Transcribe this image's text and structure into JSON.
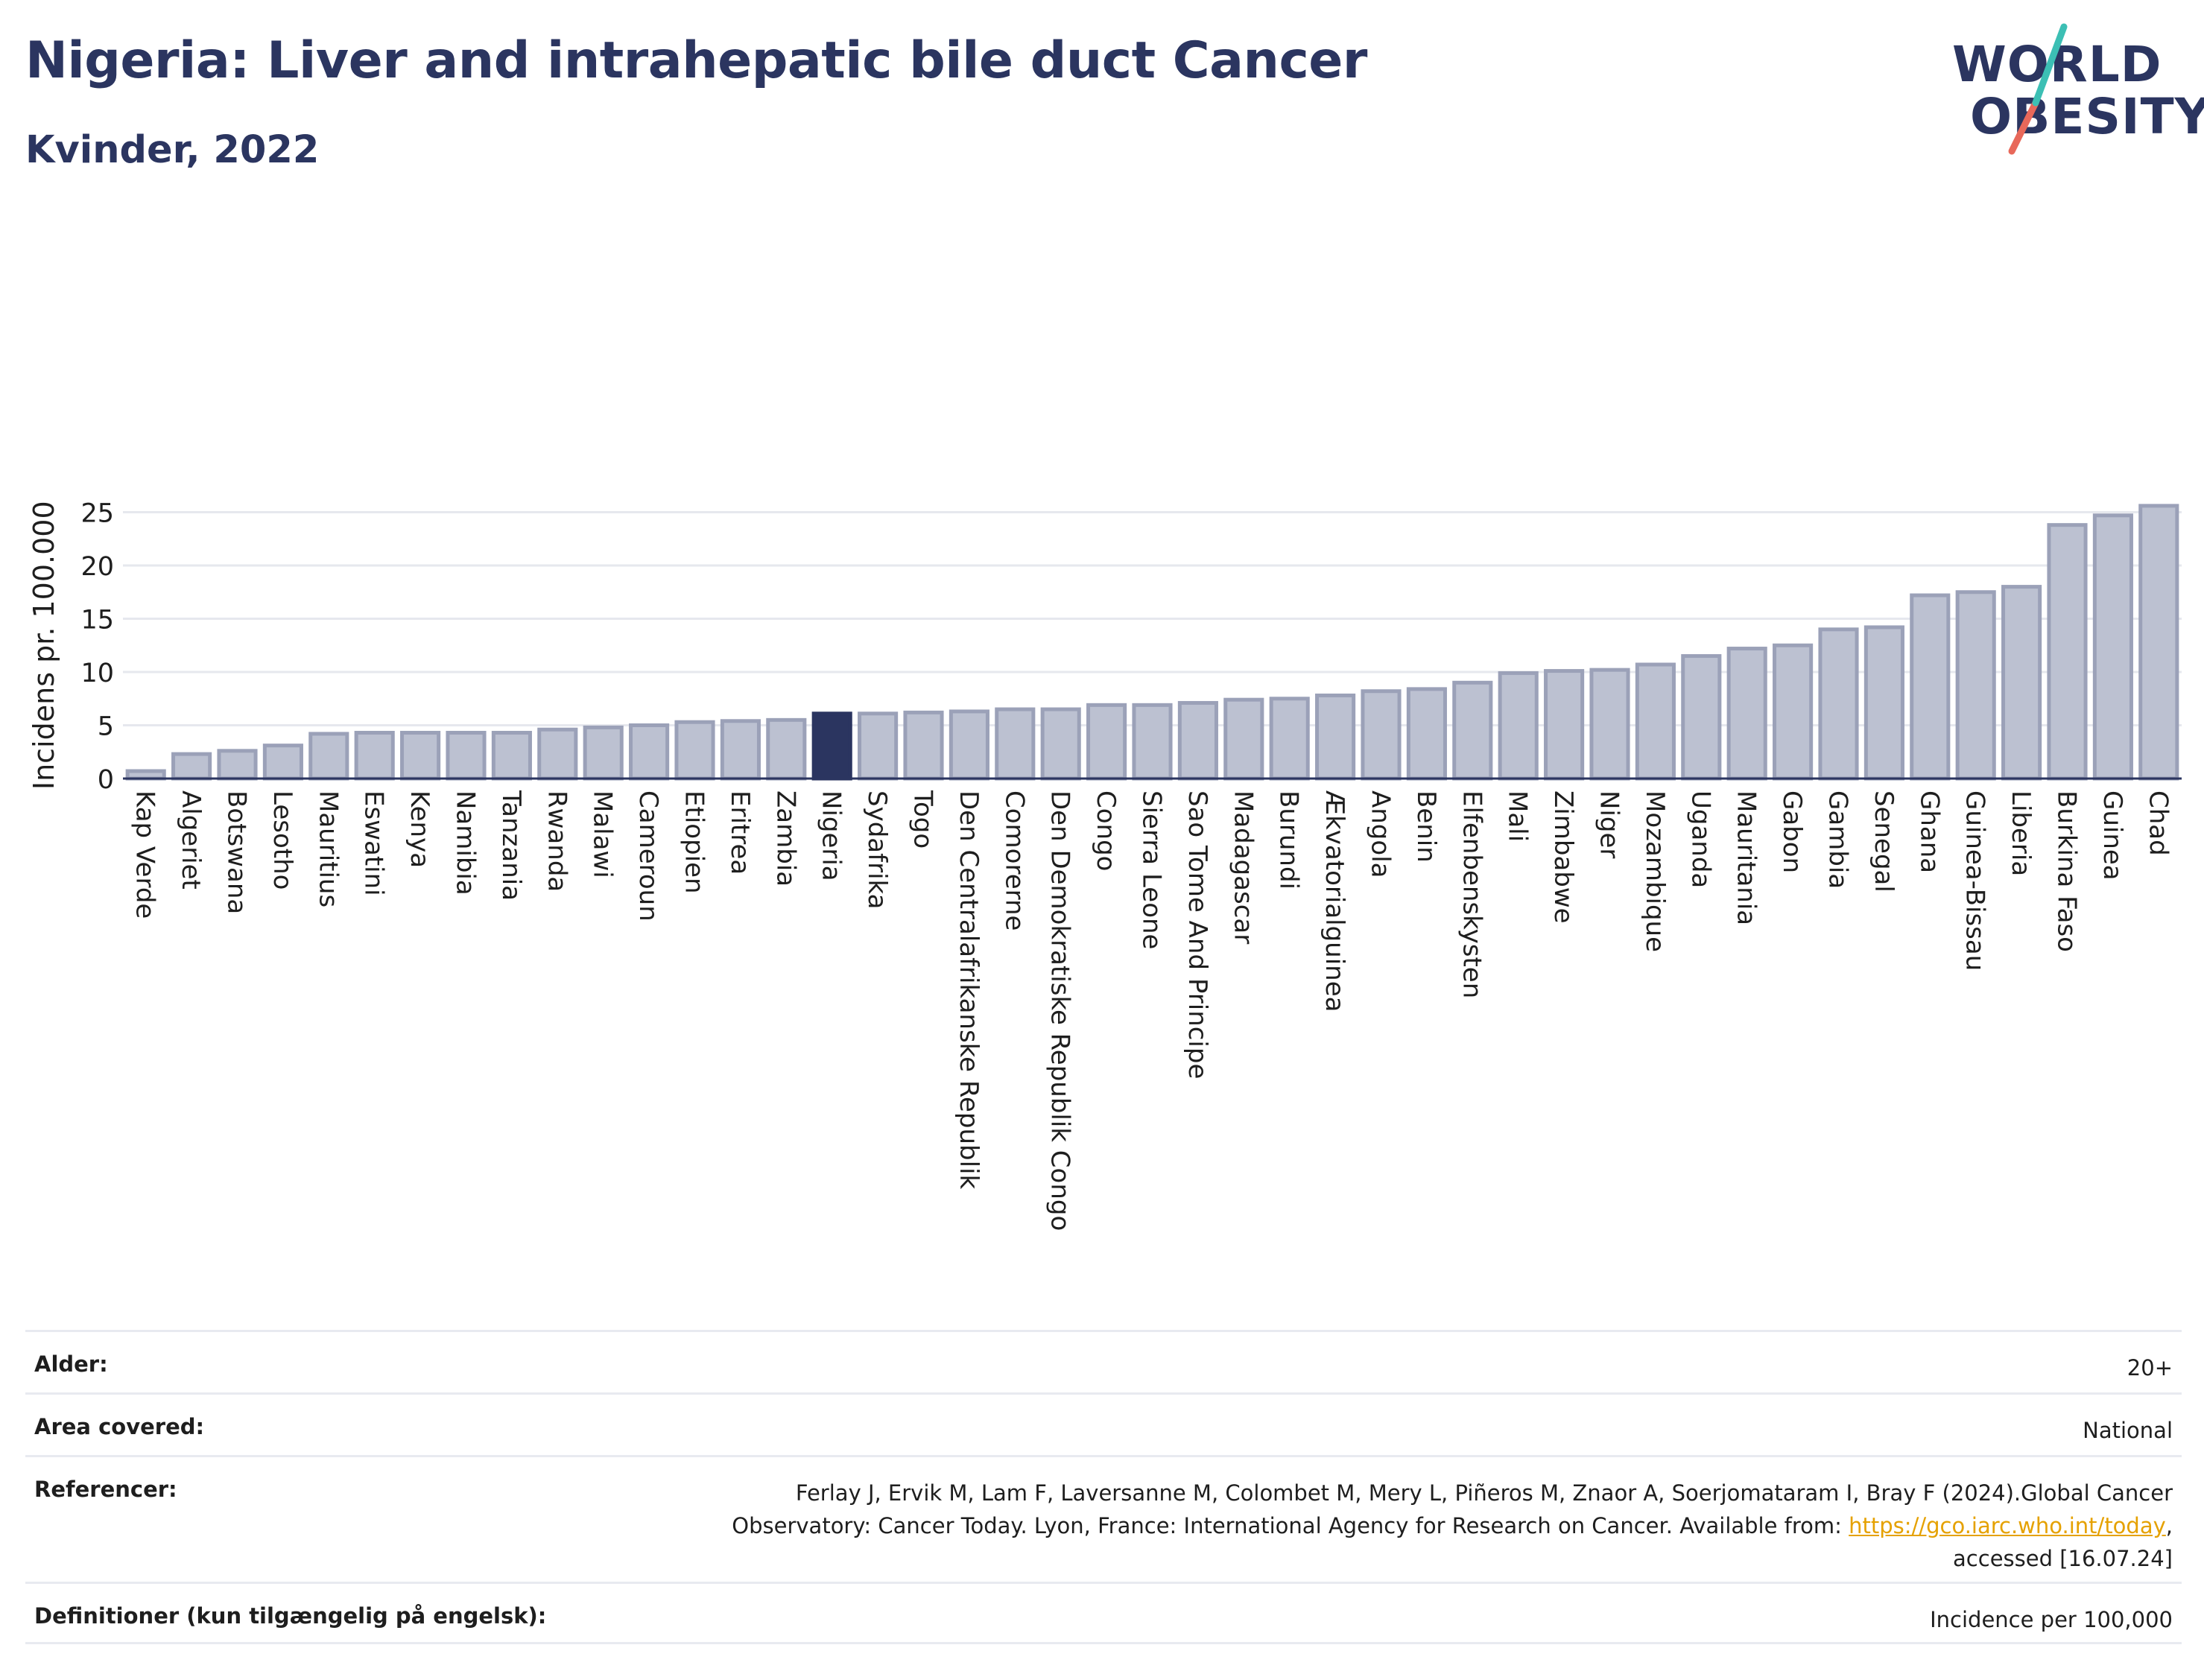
{
  "header": {
    "title": "Nigeria: Liver and intrahepatic bile duct Cancer",
    "subtitle": "Kvinder, 2022"
  },
  "logo": {
    "line1": "WORLD",
    "line2": "OBESITY"
  },
  "colors": {
    "bar": "#bcc1d1",
    "bar_border": "#9ba1b8",
    "highlight": "#2b3560",
    "title": "#2b3560",
    "link": "#e5a100"
  },
  "chart_data": {
    "type": "bar",
    "title": "Nigeria: Liver and intrahepatic bile duct Cancer",
    "subtitle": "Kvinder, 2022",
    "xlabel": "",
    "ylabel": "Incidens pr. 100.000",
    "ylim": [
      0,
      26
    ],
    "yticks": [
      0,
      5,
      10,
      15,
      20,
      25
    ],
    "grid": true,
    "highlight": "Nigeria",
    "categories": [
      "Kap Verde",
      "Algeriet",
      "Botswana",
      "Lesotho",
      "Mauritius",
      "Eswatini",
      "Kenya",
      "Namibia",
      "Tanzania",
      "Rwanda",
      "Malawi",
      "Cameroun",
      "Etiopien",
      "Eritrea",
      "Zambia",
      "Nigeria",
      "Sydafrika",
      "Togo",
      "Den Centralafrikanske Republik",
      "Comorerne",
      "Den Demokratiske Republik Congo",
      "Congo",
      "Sierra Leone",
      "Sao Tome And Principe",
      "Madagascar",
      "Burundi",
      "Ækvatorialguinea",
      "Angola",
      "Benin",
      "Elfenbenskysten",
      "Mali",
      "Zimbabwe",
      "Niger",
      "Mozambique",
      "Uganda",
      "Mauritania",
      "Gabon",
      "Gambia",
      "Senegal",
      "Ghana",
      "Guinea-Bissau",
      "Liberia",
      "Burkina Faso",
      "Guinea",
      "Chad"
    ],
    "values": [
      0.7,
      2.3,
      2.6,
      3.1,
      4.2,
      4.3,
      4.3,
      4.3,
      4.3,
      4.6,
      4.8,
      5.0,
      5.3,
      5.4,
      5.5,
      6.1,
      6.1,
      6.2,
      6.3,
      6.5,
      6.5,
      6.9,
      6.9,
      7.1,
      7.4,
      7.5,
      7.8,
      8.2,
      8.4,
      9.0,
      9.9,
      10.1,
      10.2,
      10.7,
      11.5,
      12.2,
      12.5,
      14.0,
      14.2,
      17.2,
      17.5,
      18.0,
      23.8,
      24.7,
      25.6
    ]
  },
  "info": {
    "rows": [
      {
        "label": "Alder:",
        "value": "20+"
      },
      {
        "label": "Area covered:",
        "value": "National"
      },
      {
        "label": "Definitioner (kun tilgængelig på engelsk):",
        "value": "Incidence per 100,000"
      }
    ],
    "references": {
      "label": "Referencer:",
      "line1": "Ferlay J, Ervik M, Lam F, Laversanne M, Colombet M, Mery L, Piñeros M, Znaor A, Soerjomataram I, Bray F (2024).Global Cancer",
      "line2_pre": "Observatory: Cancer Today. Lyon, France: International Agency for Research on Cancer. Available from: ",
      "link": "https://gco.iarc.who.int/today",
      "line2_post": ",",
      "line3": "accessed [16.07.24]"
    }
  }
}
